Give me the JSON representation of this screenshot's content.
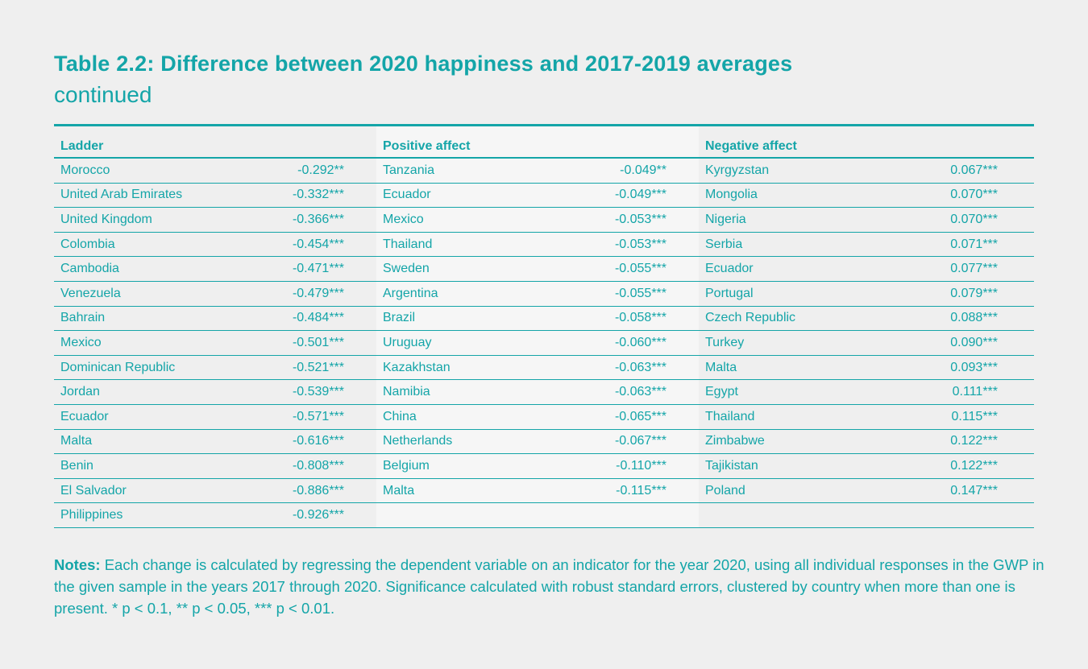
{
  "title": "Table 2.2: Difference between 2020 happiness and 2017-2019 averages",
  "subtitle": "continued",
  "columns": [
    {
      "header": "Ladder",
      "rows": [
        [
          "Morocco",
          "-0.292**"
        ],
        [
          "United Arab Emirates",
          "-0.332***"
        ],
        [
          "United Kingdom",
          "-0.366***"
        ],
        [
          "Colombia",
          "-0.454***"
        ],
        [
          "Cambodia",
          "-0.471***"
        ],
        [
          "Venezuela",
          "-0.479***"
        ],
        [
          "Bahrain",
          "-0.484***"
        ],
        [
          "Mexico",
          "-0.501***"
        ],
        [
          "Dominican Republic",
          "-0.521***"
        ],
        [
          "Jordan",
          "-0.539***"
        ],
        [
          "Ecuador",
          "-0.571***"
        ],
        [
          "Malta",
          "-0.616***"
        ],
        [
          "Benin",
          "-0.808***"
        ],
        [
          "El Salvador",
          "-0.886***"
        ],
        [
          "Philippines",
          "-0.926***"
        ]
      ]
    },
    {
      "header": "Positive affect",
      "rows": [
        [
          "Tanzania",
          "-0.049**"
        ],
        [
          "Ecuador",
          "-0.049***"
        ],
        [
          "Mexico",
          "-0.053***"
        ],
        [
          "Thailand",
          "-0.053***"
        ],
        [
          "Sweden",
          "-0.055***"
        ],
        [
          "Argentina",
          "-0.055***"
        ],
        [
          "Brazil",
          "-0.058***"
        ],
        [
          "Uruguay",
          "-0.060***"
        ],
        [
          "Kazakhstan",
          "-0.063***"
        ],
        [
          "Namibia",
          "-0.063***"
        ],
        [
          "China",
          "-0.065***"
        ],
        [
          "Netherlands",
          "-0.067***"
        ],
        [
          "Belgium",
          "-0.110***"
        ],
        [
          "Malta",
          "-0.115***"
        ]
      ]
    },
    {
      "header": "Negative affect",
      "rows": [
        [
          "Kyrgyzstan",
          "0.067***"
        ],
        [
          "Mongolia",
          "0.070***"
        ],
        [
          "Nigeria",
          "0.070***"
        ],
        [
          "Serbia",
          "0.071***"
        ],
        [
          "Ecuador",
          "0.077***"
        ],
        [
          "Portugal",
          "0.079***"
        ],
        [
          "Czech Republic",
          "0.088***"
        ],
        [
          "Turkey",
          "0.090***"
        ],
        [
          "Malta",
          "0.093***"
        ],
        [
          "Egypt",
          "0.111***"
        ],
        [
          "Thailand",
          "0.115***"
        ],
        [
          "Zimbabwe",
          "0.122***"
        ],
        [
          "Tajikistan",
          "0.122***"
        ],
        [
          "Poland",
          "0.147***"
        ]
      ]
    }
  ],
  "notes": {
    "label": "Notes:",
    "text": " Each change is calculated by regressing the dependent variable on an indicator for the year 2020, using all individual responses in the GWP in the given sample in the years 2017 through 2020. Significance calculated with robust standard errors, clustered by country when more than one is present. * p < 0.1, ** p < 0.05, *** p < 0.01."
  },
  "colors": {
    "accent": "#14a5a8",
    "background": "#efefef"
  }
}
